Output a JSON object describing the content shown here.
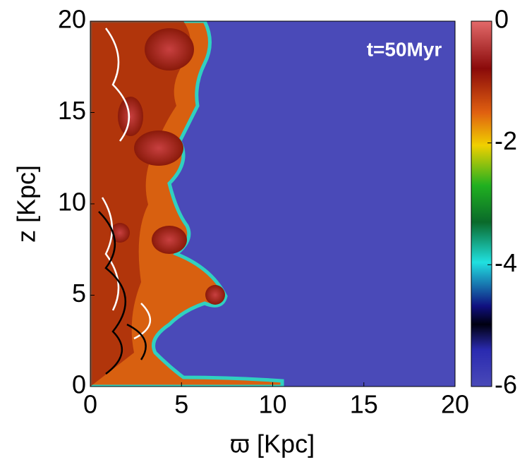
{
  "chart_data": {
    "type": "heatmap",
    "xlabel": "ϖ [Kpc]",
    "ylabel": "z [Kpc]",
    "annotation": "t=50Myr",
    "xlim": [
      0,
      20
    ],
    "xticks": [
      0,
      5,
      10,
      15,
      20
    ],
    "ylim": [
      0,
      20
    ],
    "yticks": [
      0,
      5,
      10,
      15,
      20
    ],
    "colorbar": {
      "lim": [
        -6,
        0
      ],
      "ticks": [
        0,
        -2,
        -4,
        -6
      ]
    }
  }
}
